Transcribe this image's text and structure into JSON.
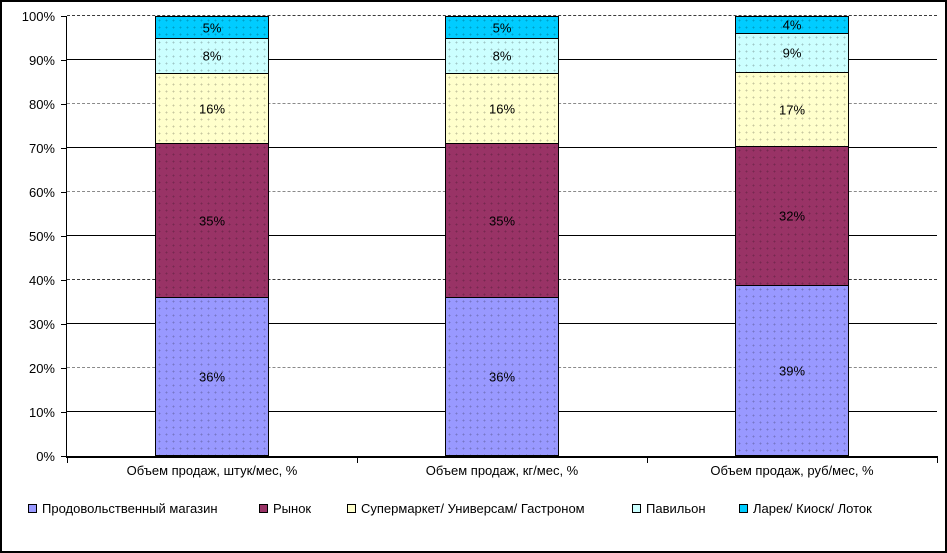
{
  "chart_data": {
    "type": "bar",
    "subtype": "stacked-100",
    "title": "",
    "xlabel": "",
    "ylabel": "",
    "ylim": [
      0,
      100
    ],
    "grid": true,
    "legend_position": "bottom",
    "label_suffix": "%",
    "y_ticks": [
      "0%",
      "10%",
      "20%",
      "30%",
      "40%",
      "50%",
      "60%",
      "70%",
      "80%",
      "90%",
      "100%"
    ],
    "categories": [
      "Объем продаж, штук/мес, %",
      "Объем продаж, кг/мес, %",
      "Объем продаж, руб/мес, %"
    ],
    "series": [
      {
        "name": "Продовольственный магазин",
        "color": "#9999FF",
        "values": [
          36,
          36,
          39
        ]
      },
      {
        "name": "Рынок",
        "color": "#993366",
        "values": [
          35,
          35,
          32
        ]
      },
      {
        "name": "Супермаркет/ Универсам/ Гастроном",
        "color": "#FFFFCC",
        "values": [
          16,
          16,
          17
        ]
      },
      {
        "name": "Павильон",
        "color": "#CCFFFF",
        "values": [
          8,
          8,
          9
        ]
      },
      {
        "name": "Ларек/ Киоск/ Лоток",
        "color": "#00CCFF",
        "values": [
          5,
          5,
          4
        ]
      }
    ]
  }
}
